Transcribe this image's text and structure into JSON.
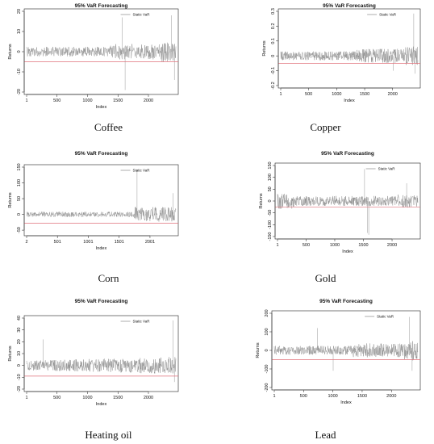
{
  "chart_data": [
    {
      "type": "line",
      "title": "95% VaR Forecasting",
      "xlabel": "Index",
      "ylabel": "Returns",
      "xlim": [
        1,
        2450
      ],
      "ylim": [
        -20,
        20
      ],
      "xticks": [
        1,
        500,
        1000,
        1500,
        2000
      ],
      "yticks": [
        -20,
        -10,
        0,
        10,
        20
      ],
      "var_level": -5,
      "series": [
        {
          "name": "Static VaR"
        }
      ],
      "caption": "Coffee",
      "colors": {
        "returns": "#8c8c8c",
        "var": "#e0707a"
      }
    },
    {
      "type": "line",
      "title": "95% VaR Forecasting",
      "xlabel": "Index",
      "ylabel": "Returns",
      "xlim": [
        1,
        2450
      ],
      "ylim": [
        -0.2,
        0.3
      ],
      "xticks": [
        1,
        500,
        1000,
        1500,
        2000
      ],
      "yticks": [
        -0.2,
        -0.1,
        0.0,
        0.1,
        0.2,
        0.3
      ],
      "var_level": -0.05,
      "series": [
        {
          "name": "Static VaR"
        }
      ],
      "caption": "Copper",
      "colors": {
        "returns": "#8c8c8c",
        "var": "#e0707a"
      }
    },
    {
      "type": "line",
      "title": "95% VaR Forecasting",
      "xlabel": "Index",
      "ylabel": "Returns",
      "xlim": [
        2,
        2420
      ],
      "ylim": [
        -60,
        150
      ],
      "xticks": [
        2,
        501,
        1001,
        1501,
        2001
      ],
      "yticks": [
        -50,
        0,
        50,
        100,
        150
      ],
      "var_level": -28,
      "series": [
        {
          "name": "Static VaR"
        }
      ],
      "caption": "Corn",
      "colors": {
        "returns": "#8c8c8c",
        "var": "#e0707a"
      }
    },
    {
      "type": "line",
      "title": "95% VaR Forecasting",
      "xlabel": "Index",
      "ylabel": "Returns",
      "xlim": [
        1,
        2450
      ],
      "ylim": [
        -150,
        150
      ],
      "xticks": [
        1,
        500,
        1000,
        1500,
        2000
      ],
      "yticks": [
        -150,
        -100,
        -50,
        0,
        50,
        100,
        150
      ],
      "var_level": -25,
      "series": [
        {
          "name": "Static VaR"
        }
      ],
      "caption": "Gold",
      "colors": {
        "returns": "#8c8c8c",
        "var": "#e0707a"
      }
    },
    {
      "type": "line",
      "title": "95% VaR Forecasting",
      "xlabel": "Index",
      "ylabel": "Returns",
      "xlim": [
        1,
        2450
      ],
      "ylim": [
        -20,
        40
      ],
      "xticks": [
        1,
        500,
        1000,
        1500,
        2000
      ],
      "yticks": [
        -20,
        -10,
        0,
        10,
        20,
        30,
        40
      ],
      "var_level": -9,
      "series": [
        {
          "name": "Static VaR"
        }
      ],
      "caption": "Heating oil",
      "colors": {
        "returns": "#8c8c8c",
        "var": "#e0707a"
      }
    },
    {
      "type": "line",
      "title": "95% VaR Forecasting",
      "xlabel": "Index",
      "ylabel": "Returns",
      "xlim": [
        1,
        2450
      ],
      "ylim": [
        -200,
        200
      ],
      "xticks": [
        1,
        500,
        1000,
        1500,
        2000
      ],
      "yticks": [
        -200,
        -100,
        0,
        100,
        200
      ],
      "var_level": -50,
      "series": [
        {
          "name": "Static VaR"
        }
      ],
      "caption": "Lead",
      "colors": {
        "returns": "#8c8c8c",
        "var": "#e0707a"
      }
    }
  ]
}
